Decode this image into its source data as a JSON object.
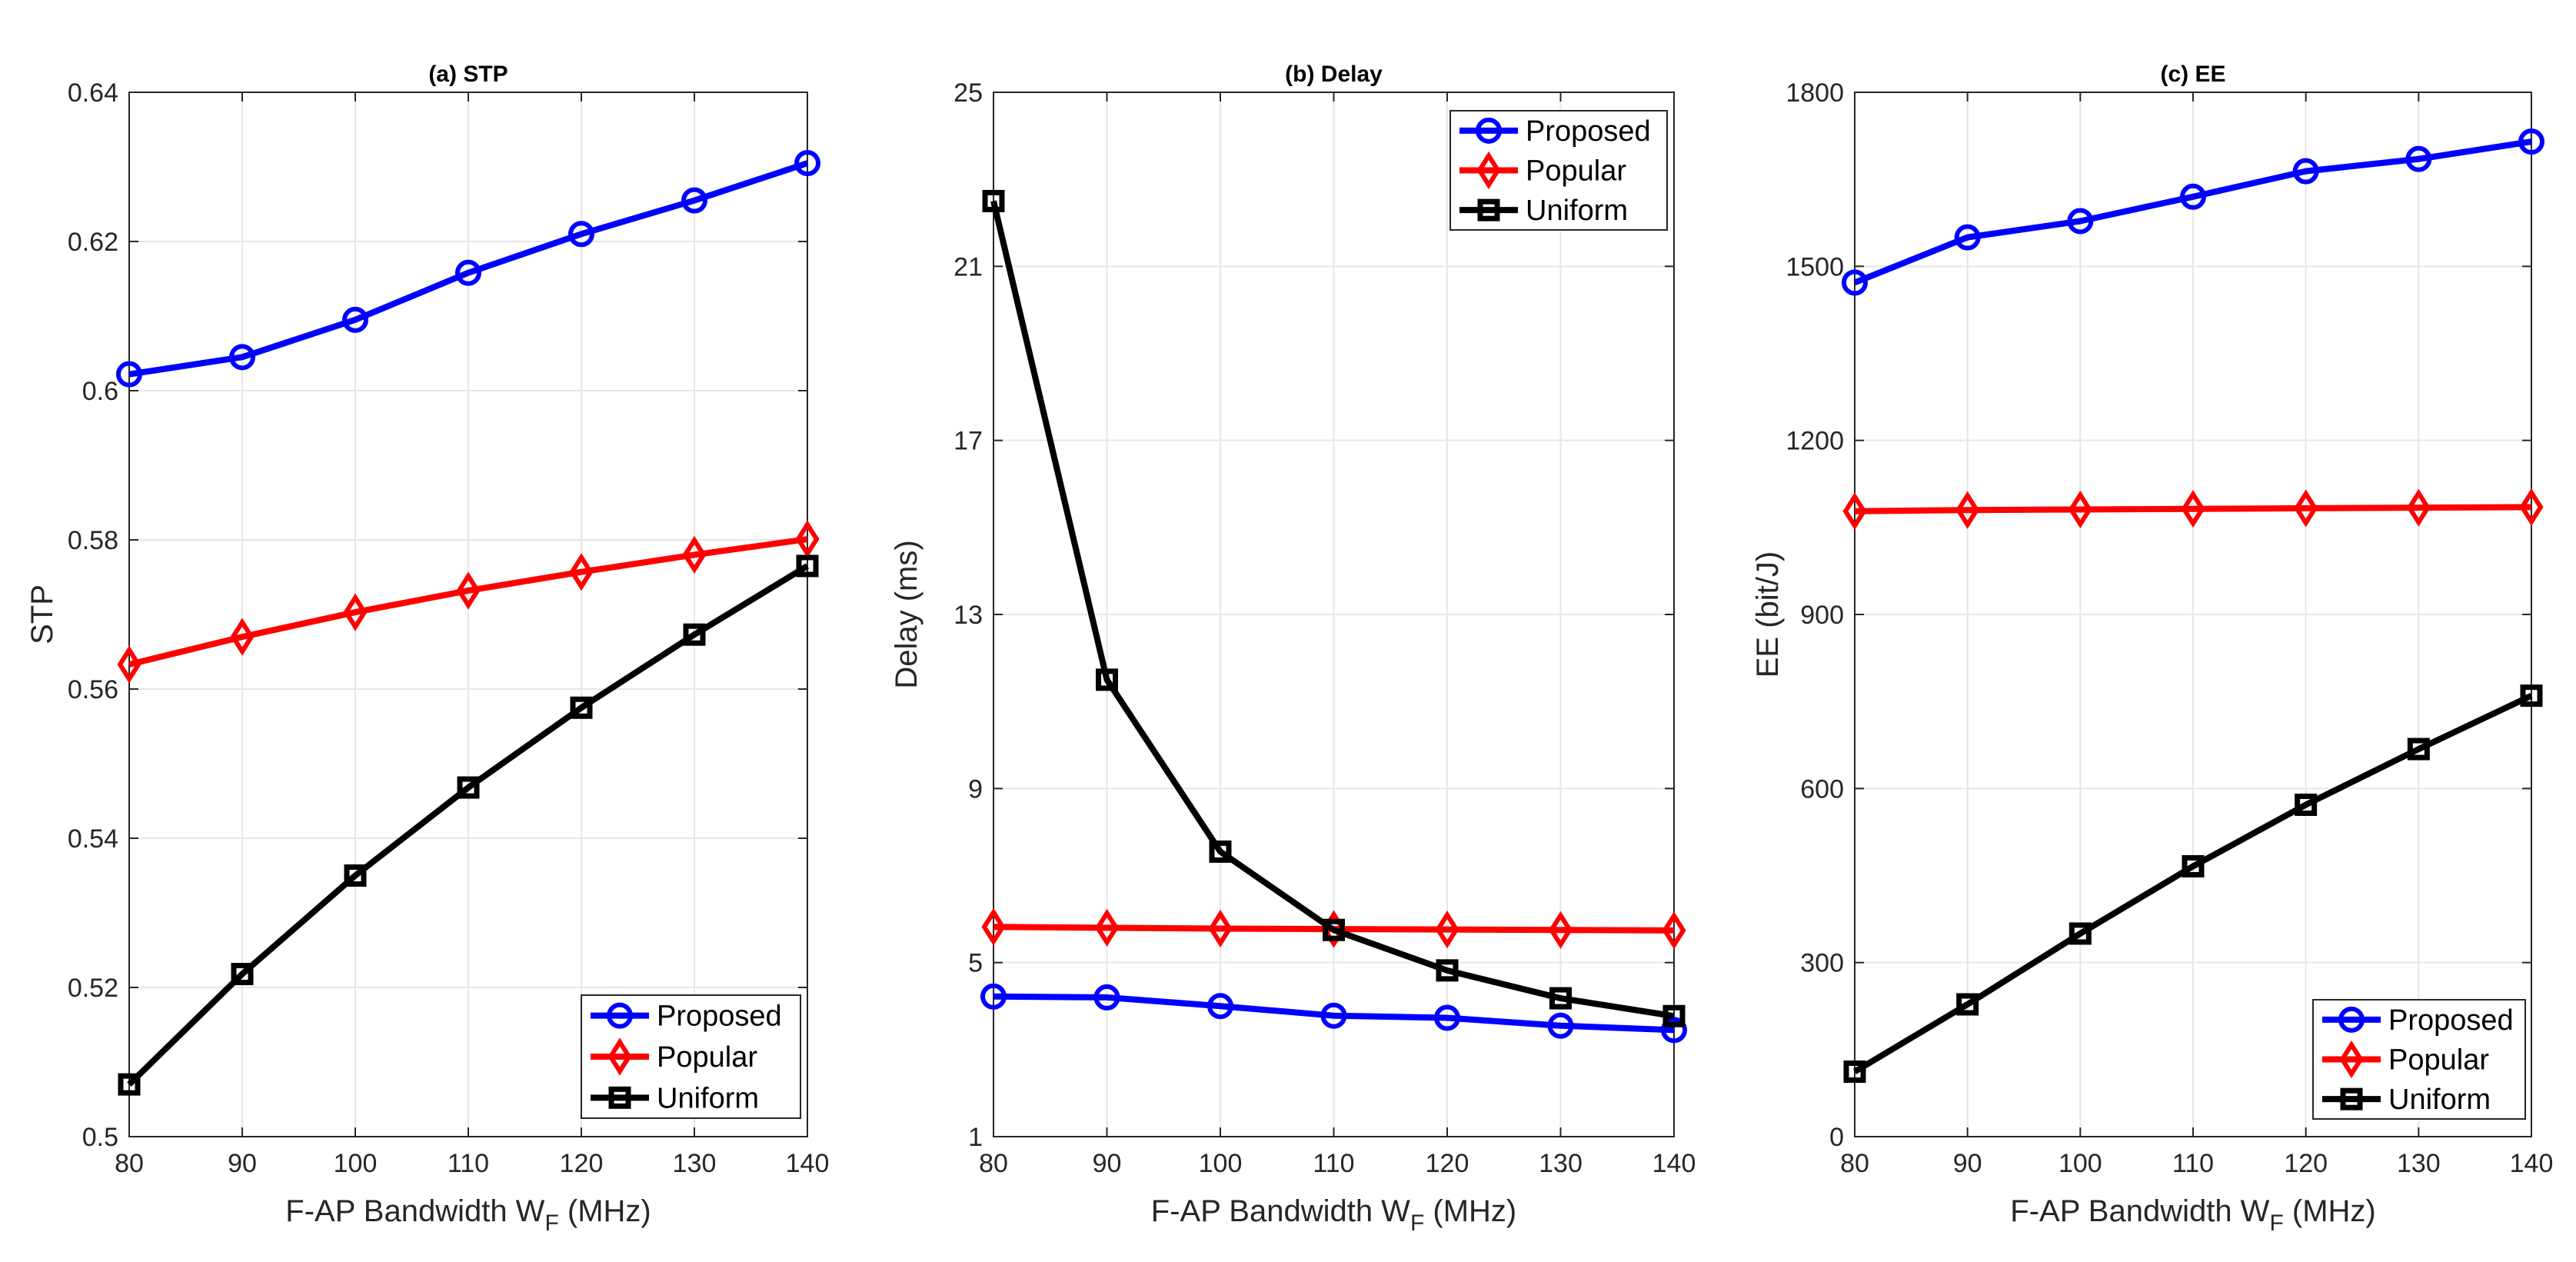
{
  "chart_data": [
    {
      "type": "line",
      "title": "(a) STP",
      "xlabel": "F-AP Bandwidth W",
      "xlabel_subscript": "F",
      "xlabel_suffix": " (MHz)",
      "ylabel": "STP",
      "x": [
        80,
        90,
        100,
        110,
        120,
        130,
        140
      ],
      "xlim": [
        80,
        140
      ],
      "ylim": [
        0.5,
        0.64
      ],
      "xticks": [
        80,
        90,
        100,
        110,
        120,
        130,
        140
      ],
      "yticks": [
        0.5,
        0.52,
        0.54,
        0.56,
        0.58,
        0.6,
        0.62,
        0.64
      ],
      "ytick_labels": [
        "0.5",
        "0.52",
        "0.54",
        "0.56",
        "0.58",
        "0.6",
        "0.62",
        "0.64"
      ],
      "grid": true,
      "legend_position": "bottom-right",
      "series": [
        {
          "name": "Proposed",
          "color": "#0000ff",
          "marker": "circle",
          "values": [
            0.6022,
            0.6045,
            0.6095,
            0.6158,
            0.621,
            0.6255,
            0.6305
          ]
        },
        {
          "name": "Popular",
          "color": "#ff0000",
          "marker": "diamond",
          "values": [
            0.5633,
            0.567,
            0.5703,
            0.5732,
            0.5757,
            0.578,
            0.5801
          ]
        },
        {
          "name": "Uniform",
          "color": "#000000",
          "marker": "square",
          "values": [
            0.507,
            0.5218,
            0.535,
            0.5468,
            0.5575,
            0.5673,
            0.5765
          ]
        }
      ]
    },
    {
      "type": "line",
      "title": "(b) Delay",
      "xlabel": "F-AP Bandwidth W",
      "xlabel_subscript": "F",
      "xlabel_suffix": " (MHz)",
      "ylabel": "Delay (ms)",
      "x": [
        80,
        90,
        100,
        110,
        120,
        130,
        140
      ],
      "xlim": [
        80,
        140
      ],
      "ylim": [
        1,
        25
      ],
      "xticks": [
        80,
        90,
        100,
        110,
        120,
        130,
        140
      ],
      "yticks": [
        1,
        5,
        9,
        13,
        17,
        21,
        25
      ],
      "ytick_labels": [
        "1",
        "5",
        "9",
        "13",
        "17",
        "21",
        "25"
      ],
      "grid": true,
      "legend_position": "top-right",
      "series": [
        {
          "name": "Proposed",
          "color": "#0000ff",
          "marker": "circle",
          "values": [
            4.22,
            4.2,
            4.0,
            3.78,
            3.73,
            3.55,
            3.45
          ]
        },
        {
          "name": "Popular",
          "color": "#ff0000",
          "marker": "diamond",
          "values": [
            5.82,
            5.8,
            5.78,
            5.77,
            5.76,
            5.75,
            5.74
          ]
        },
        {
          "name": "Uniform",
          "color": "#000000",
          "marker": "square",
          "values": [
            22.5,
            11.5,
            7.55,
            5.75,
            4.82,
            4.18,
            3.77
          ]
        }
      ]
    },
    {
      "type": "line",
      "title": "(c) EE",
      "xlabel": "F-AP Bandwidth W",
      "xlabel_subscript": "F",
      "xlabel_suffix": " (MHz)",
      "ylabel": "EE (bit/J)",
      "x": [
        80,
        90,
        100,
        110,
        120,
        130,
        140
      ],
      "xlim": [
        80,
        140
      ],
      "ylim": [
        0,
        1800
      ],
      "xticks": [
        80,
        90,
        100,
        110,
        120,
        130,
        140
      ],
      "yticks": [
        0,
        300,
        600,
        900,
        1200,
        1500,
        1800
      ],
      "ytick_labels": [
        "0",
        "300",
        "600",
        "900",
        "1200",
        "1500",
        "1800"
      ],
      "grid": true,
      "legend_position": "bottom-right",
      "series": [
        {
          "name": "Proposed",
          "color": "#0000ff",
          "marker": "circle",
          "values": [
            1472,
            1550,
            1578,
            1620,
            1664,
            1685,
            1715
          ]
        },
        {
          "name": "Popular",
          "color": "#ff0000",
          "marker": "diamond",
          "values": [
            1078,
            1080,
            1081,
            1082,
            1083,
            1084,
            1085
          ]
        },
        {
          "name": "Uniform",
          "color": "#000000",
          "marker": "square",
          "values": [
            112,
            228,
            350,
            466,
            572,
            668,
            760
          ]
        }
      ]
    }
  ]
}
